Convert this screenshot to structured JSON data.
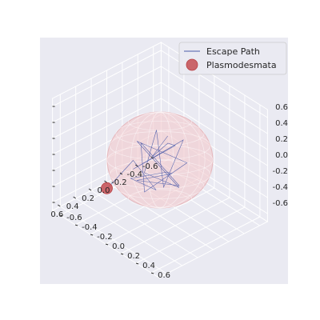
{
  "chart_data": {
    "type": "scatter",
    "projection": "3d",
    "style": "seaborn-darkgrid",
    "axes": {
      "x": {
        "lim": [
          -0.7,
          0.7
        ],
        "ticks": [
          "-0.6",
          "-0.4",
          "-0.2",
          "0.0",
          "0.2",
          "0.4",
          "0.6"
        ]
      },
      "y": {
        "lim": [
          -0.7,
          0.7
        ],
        "ticks": [
          "-0.6",
          "-0.4",
          "-0.2",
          "0.0",
          "0.2",
          "0.4",
          "0.6"
        ]
      },
      "z": {
        "lim": [
          -0.7,
          0.7
        ],
        "ticks": [
          "-0.6",
          "-0.4",
          "-0.2",
          "0.0",
          "0.2",
          "0.4",
          "0.6"
        ]
      }
    },
    "grid": true,
    "legend": {
      "position": "upper right",
      "entries": [
        {
          "label": "Escape Path",
          "marker": "line",
          "color": "#4a5aa8"
        },
        {
          "label": "Plasmodesmata",
          "marker": "circle",
          "color": "#c44e52"
        }
      ]
    },
    "sphere": {
      "radius": 0.5,
      "color": "#f2c8cc"
    },
    "series": [
      {
        "name": "Escape Path",
        "type": "line3d",
        "color": "#4a5aa8",
        "points": [
          [
            -0.1,
            0.0,
            0.25
          ],
          [
            0.2,
            0.1,
            0.2
          ],
          [
            -0.2,
            -0.1,
            0.05
          ],
          [
            0.0,
            0.2,
            0.3
          ],
          [
            0.25,
            -0.1,
            -0.05
          ],
          [
            -0.3,
            0.0,
            0.1
          ],
          [
            0.1,
            0.15,
            -0.2
          ],
          [
            -0.15,
            -0.2,
            0.18
          ],
          [
            0.3,
            0.1,
            0.05
          ],
          [
            -0.05,
            0.2,
            -0.25
          ],
          [
            0.15,
            -0.15,
            0.22
          ],
          [
            -0.25,
            0.1,
            -0.1
          ],
          [
            0.2,
            0.0,
            -0.3
          ],
          [
            0.05,
            -0.2,
            0.12
          ],
          [
            -0.1,
            0.15,
            -0.28
          ],
          [
            0.35,
            0.05,
            -0.05
          ],
          [
            -0.2,
            -0.05,
            -0.3
          ],
          [
            0.1,
            0.2,
            0.02
          ],
          [
            0.28,
            -0.1,
            -0.15
          ],
          [
            0.05,
            0.0,
            -0.35
          ],
          [
            0.15,
            -0.2,
            -0.05
          ],
          [
            0.42,
            -0.2,
            -0.2
          ],
          [
            0.47,
            -0.22,
            -0.25
          ]
        ]
      },
      {
        "name": "Plasmodesmata",
        "type": "scatter3d",
        "color": "#c44e52",
        "points": [
          [
            0.47,
            -0.22,
            -0.25
          ]
        ]
      }
    ]
  }
}
